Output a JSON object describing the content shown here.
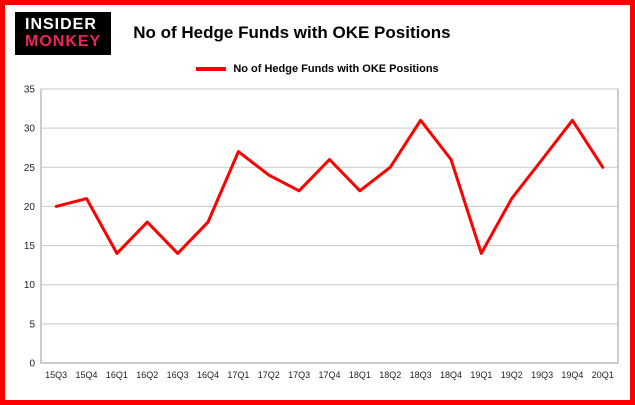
{
  "logo": {
    "line1": "INSIDER",
    "line2": "MONKEY"
  },
  "title": "No of Hedge Funds with OKE Positions",
  "legend": {
    "label": "No of Hedge Funds with OKE Positions"
  },
  "colors": {
    "line": "#ff0000",
    "frame_border": "#ff0000",
    "grid": "#c9c9c9",
    "plot_border": "#9a9a9a",
    "axis_text": "#222222",
    "logo_bg": "#000000",
    "logo_monkey": "#f0235a"
  },
  "chart_data": {
    "type": "line",
    "categories": [
      "15Q3",
      "15Q4",
      "16Q1",
      "16Q2",
      "16Q3",
      "16Q4",
      "17Q1",
      "17Q2",
      "17Q3",
      "17Q4",
      "18Q1",
      "18Q2",
      "18Q3",
      "18Q4",
      "19Q1",
      "19Q2",
      "19Q3",
      "19Q4",
      "20Q1"
    ],
    "values": [
      20,
      21,
      14,
      18,
      14,
      18,
      27,
      24,
      22,
      26,
      22,
      25,
      31,
      26,
      14,
      21,
      26,
      31,
      25
    ],
    "title": "No of Hedge Funds with OKE Positions",
    "xlabel": "",
    "ylabel": "",
    "ylim": [
      0,
      35
    ],
    "yticks": [
      0,
      5,
      10,
      15,
      20,
      25,
      30,
      35
    ],
    "grid": true,
    "legend_position": "top"
  }
}
